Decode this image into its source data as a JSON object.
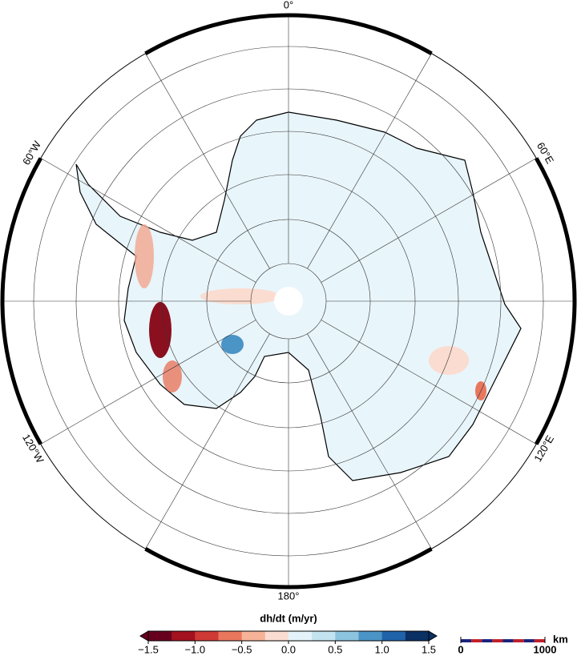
{
  "map": {
    "graticule_labels": [
      "0°",
      "60°E",
      "120°E",
      "180°",
      "120°W",
      "60°W"
    ]
  },
  "colorbar": {
    "title": "dh/dt (m/yr)",
    "colors": [
      "#67001f",
      "#a3121f",
      "#cf3a36",
      "#e9775e",
      "#f6b398",
      "#fbdcd0",
      "#e4f3f9",
      "#c2e3ef",
      "#8cc3df",
      "#4a94c6",
      "#2063a8",
      "#0b3063"
    ],
    "lim": [
      -1.5,
      1.5
    ],
    "ticks": [
      {
        "value": -1.5,
        "label": "−1.5"
      },
      {
        "value": -1.0,
        "label": "−1.0"
      },
      {
        "value": -0.5,
        "label": "−0.5"
      },
      {
        "value": 0,
        "label": "0.0"
      },
      0.5,
      {
        "value": 1.0,
        "label": "1.0"
      },
      1.5
    ]
  },
  "scale_bar": {
    "unit": "km",
    "ticks": [
      0,
      1000
    ]
  }
}
